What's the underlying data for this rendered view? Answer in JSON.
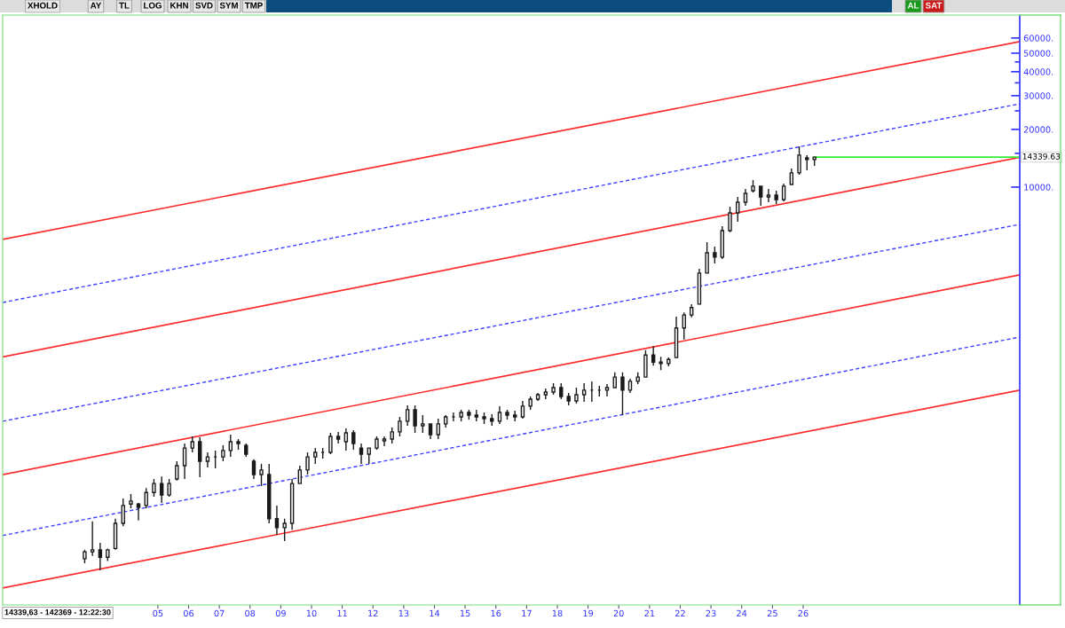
{
  "chart_data": {
    "type": "candlestick",
    "title": "XHOLD",
    "log": true,
    "xlim": [
      "1999-12-14",
      "2033-01-18"
    ],
    "xticks": [
      {
        "value": "2005",
        "label": "05"
      },
      {
        "value": "2006",
        "label": "06"
      },
      {
        "value": "2007",
        "label": "07"
      },
      {
        "value": "2008",
        "label": "08"
      },
      {
        "value": "2009",
        "label": "09"
      },
      {
        "value": "2010",
        "label": "10"
      },
      {
        "value": "2011",
        "label": "11"
      },
      {
        "value": "2012",
        "label": "12"
      },
      {
        "value": "2013",
        "label": "13"
      },
      {
        "value": "2014",
        "label": "14"
      },
      {
        "value": "2015",
        "label": "15"
      },
      {
        "value": "2016",
        "label": "16"
      },
      {
        "value": "2017",
        "label": "17"
      },
      {
        "value": "2018",
        "label": "18"
      },
      {
        "value": "2019",
        "label": "19"
      },
      {
        "value": "2020",
        "label": "20"
      },
      {
        "value": "2021",
        "label": "21"
      },
      {
        "value": "2022",
        "label": "22"
      },
      {
        "value": "2023",
        "label": "23"
      },
      {
        "value": "2024",
        "label": "24"
      },
      {
        "value": "2025",
        "label": "25"
      },
      {
        "value": "2026",
        "label": "26"
      }
    ],
    "ylim": [
      66,
      79000
    ],
    "yticks": [
      {
        "value": 10000,
        "label": "10000."
      },
      {
        "value": 15000,
        "label": null
      },
      {
        "value": 20000,
        "label": "20000."
      },
      {
        "value": 25000,
        "label": null
      },
      {
        "value": 30000,
        "label": "30000."
      },
      {
        "value": 35000,
        "label": null
      },
      {
        "value": 40000,
        "label": "40000."
      },
      {
        "value": 45000,
        "label": null
      },
      {
        "value": 50000,
        "label": "50000."
      },
      {
        "value": 60000,
        "label": "60000."
      }
    ],
    "series": [
      {
        "type": "line",
        "color": "#ff2a2a",
        "line_style": "solid",
        "x": [
          "1999-12-14",
          "2033-01-18"
        ],
        "values": [
          5330,
          57400
        ]
      },
      {
        "type": "line",
        "color": "#4040ff",
        "line_style": "dashed",
        "x": [
          "1999-12-14",
          "2033-01-18"
        ],
        "values": [
          2500,
          27200
        ]
      },
      {
        "type": "line",
        "color": "#ff2a2a",
        "line_style": "solid",
        "x": [
          "1999-12-14",
          "2033-01-18"
        ],
        "values": [
          1300,
          14300
        ]
      },
      {
        "type": "line",
        "color": "#4040ff",
        "line_style": "dashed",
        "x": [
          "1999-12-14",
          "2033-01-18"
        ],
        "values": [
          600,
          6390
        ]
      },
      {
        "type": "line",
        "color": "#ff2a2a",
        "line_style": "solid",
        "x": [
          "1999-12-14",
          "2033-01-18"
        ],
        "values": [
          316,
          3480
        ]
      },
      {
        "type": "line",
        "color": "#4040ff",
        "line_style": "dashed",
        "x": [
          "1999-12-14",
          "2033-01-18"
        ],
        "values": [
          152,
          1650
        ]
      },
      {
        "type": "line",
        "color": "#ff2a2a",
        "line_style": "solid",
        "x": [
          "1999-12-14",
          "2033-01-18"
        ],
        "values": [
          81,
          871
        ]
      },
      {
        "type": "line",
        "color": "#33ee33",
        "line_style": "solid",
        "x": [
          "2026-05-15",
          "2033-01-18"
        ],
        "values": [
          14339.63,
          14339.63
        ]
      },
      {
        "type": "candlestick",
        "color": "#1a1a1a",
        "x": [
          "2002-08-15",
          "2002-11-15",
          "2003-02-15",
          "2003-05-15",
          "2003-08-15",
          "2003-11-15",
          "2004-02-15",
          "2004-05-15",
          "2004-08-15",
          "2004-11-15",
          "2005-02-15",
          "2005-05-15",
          "2005-08-15",
          "2005-11-15",
          "2006-02-15",
          "2006-05-15",
          "2006-08-15",
          "2006-11-15",
          "2007-02-15",
          "2007-05-15",
          "2007-08-15",
          "2007-11-15",
          "2008-02-15",
          "2008-05-15",
          "2008-08-15",
          "2008-11-15",
          "2009-02-15",
          "2009-05-15",
          "2009-08-15",
          "2009-11-15",
          "2010-02-15",
          "2010-05-15",
          "2010-08-15",
          "2010-11-15",
          "2011-02-15",
          "2011-05-15",
          "2011-08-15",
          "2011-11-15",
          "2012-02-15",
          "2012-05-15",
          "2012-08-15",
          "2012-11-15",
          "2013-02-15",
          "2013-05-15",
          "2013-08-15",
          "2013-11-15",
          "2014-02-15",
          "2014-05-15",
          "2014-08-15",
          "2014-11-15",
          "2015-02-15",
          "2015-05-15",
          "2015-08-15",
          "2015-11-15",
          "2016-02-15",
          "2016-05-15",
          "2016-08-15",
          "2016-11-15",
          "2017-02-15",
          "2017-05-15",
          "2017-08-15",
          "2017-11-15",
          "2018-02-15",
          "2018-05-15",
          "2018-08-15",
          "2018-11-15",
          "2019-02-15",
          "2019-05-15",
          "2019-08-15",
          "2019-11-15",
          "2020-02-15",
          "2020-05-15",
          "2020-08-15",
          "2020-11-15",
          "2021-02-15",
          "2021-05-15",
          "2021-08-15",
          "2021-11-15",
          "2022-02-15",
          "2022-05-15",
          "2022-08-15",
          "2022-11-15",
          "2023-02-15",
          "2023-05-15",
          "2023-08-15",
          "2023-11-15",
          "2024-02-15",
          "2024-05-15",
          "2024-08-15",
          "2024-11-15",
          "2025-02-15",
          "2025-05-15",
          "2025-08-15",
          "2025-11-15",
          "2026-02-15",
          "2026-05-15"
        ],
        "ohlc": [
          [
            115,
            128,
            109,
            125
          ],
          [
            125,
            180,
            119,
            128
          ],
          [
            128,
            139,
            100,
            117
          ],
          [
            117,
            130,
            112,
            128
          ],
          [
            130,
            186,
            128,
            176
          ],
          [
            176,
            237,
            170,
            218
          ],
          [
            222,
            250,
            211,
            230
          ],
          [
            222,
            225,
            182,
            213
          ],
          [
            218,
            269,
            211,
            255
          ],
          [
            255,
            300,
            242,
            284
          ],
          [
            284,
            309,
            225,
            247
          ],
          [
            247,
            300,
            242,
            284
          ],
          [
            300,
            371,
            294,
            352
          ],
          [
            352,
            459,
            300,
            435
          ],
          [
            435,
            500,
            413,
            469
          ],
          [
            469,
            495,
            306,
            371
          ],
          [
            371,
            413,
            344,
            391
          ],
          [
            391,
            422,
            341,
            391
          ],
          [
            391,
            449,
            371,
            422
          ],
          [
            422,
            511,
            391,
            469
          ],
          [
            469,
            484,
            426,
            459
          ],
          [
            449,
            459,
            391,
            404
          ],
          [
            371,
            380,
            300,
            316
          ],
          [
            316,
            359,
            275,
            334
          ],
          [
            316,
            359,
            176,
            186
          ],
          [
            186,
            218,
            153,
            167
          ],
          [
            167,
            186,
            142,
            176
          ],
          [
            176,
            300,
            163,
            284
          ],
          [
            284,
            352,
            284,
            334
          ],
          [
            334,
            413,
            316,
            391
          ],
          [
            391,
            435,
            359,
            413
          ],
          [
            413,
            435,
            383,
            413
          ],
          [
            413,
            522,
            404,
            500
          ],
          [
            500,
            528,
            459,
            484
          ],
          [
            469,
            550,
            422,
            522
          ],
          [
            522,
            539,
            426,
            459
          ],
          [
            435,
            459,
            359,
            404
          ],
          [
            404,
            435,
            359,
            435
          ],
          [
            435,
            500,
            426,
            484
          ],
          [
            474,
            500,
            445,
            484
          ],
          [
            484,
            556,
            459,
            528
          ],
          [
            528,
            632,
            500,
            600
          ],
          [
            600,
            726,
            568,
            689
          ],
          [
            689,
            726,
            522,
            568
          ],
          [
            568,
            646,
            522,
            581
          ],
          [
            581,
            581,
            484,
            511
          ],
          [
            511,
            619,
            484,
            581
          ],
          [
            581,
            646,
            556,
            632
          ],
          [
            632,
            667,
            600,
            632
          ],
          [
            632,
            689,
            600,
            667
          ],
          [
            667,
            689,
            612,
            646
          ],
          [
            646,
            689,
            600,
            632
          ],
          [
            632,
            667,
            581,
            619
          ],
          [
            619,
            653,
            568,
            600
          ],
          [
            600,
            719,
            581,
            667
          ],
          [
            667,
            689,
            612,
            646
          ],
          [
            646,
            681,
            600,
            632
          ],
          [
            632,
            766,
            619,
            719
          ],
          [
            719,
            808,
            689,
            782
          ],
          [
            782,
            843,
            766,
            825
          ],
          [
            825,
            889,
            782,
            852
          ],
          [
            852,
            948,
            825,
            899
          ],
          [
            899,
            948,
            782,
            808
          ],
          [
            808,
            843,
            726,
            766
          ],
          [
            766,
            899,
            742,
            825
          ],
          [
            825,
            948,
            758,
            871
          ],
          [
            871,
            969,
            758,
            871
          ],
          [
            871,
            918,
            808,
            871
          ],
          [
            871,
            938,
            808,
            899
          ],
          [
            899,
            1080,
            899,
            1020
          ],
          [
            1020,
            1080,
            646,
            871
          ],
          [
            871,
            1000,
            843,
            969
          ],
          [
            969,
            1080,
            938,
            1020
          ],
          [
            1020,
            1410,
            1020,
            1330
          ],
          [
            1330,
            1480,
            1170,
            1220
          ],
          [
            1220,
            1300,
            1110,
            1200
          ],
          [
            1200,
            1290,
            1160,
            1260
          ],
          [
            1290,
            2110,
            1290,
            1840
          ],
          [
            1840,
            2220,
            1600,
            2150
          ],
          [
            2150,
            2450,
            2090,
            2350
          ],
          [
            2450,
            3750,
            2450,
            3560
          ],
          [
            3560,
            5160,
            3560,
            4540
          ],
          [
            4540,
            4890,
            4000,
            4310
          ],
          [
            4310,
            6250,
            4220,
            5930
          ],
          [
            5930,
            7910,
            5810,
            7340
          ],
          [
            7340,
            8890,
            6600,
            8340
          ],
          [
            8340,
            9790,
            7990,
            9280
          ],
          [
            9580,
            10890,
            9380,
            10110
          ],
          [
            10110,
            10110,
            7990,
            8890
          ],
          [
            8890,
            9790,
            8340,
            9080
          ],
          [
            9080,
            9580,
            8170,
            8610
          ],
          [
            8610,
            10430,
            8430,
            10110
          ],
          [
            10320,
            12510,
            10320,
            11860
          ],
          [
            11860,
            16330,
            11610,
            14680
          ],
          [
            14210,
            14680,
            12240,
            13920
          ],
          [
            13920,
            14370,
            12910,
            14339.63
          ]
        ]
      }
    ],
    "annotations": [
      "AY",
      "TL",
      "LOG",
      "KHN",
      "SVD",
      "SYM",
      "TMP",
      "AL",
      "SAT",
      "14339,63 - 142369 - 12:22:30",
      {
        "text": "14339.63",
        "x": "2033-01-18",
        "y": 14339.63
      }
    ]
  }
}
